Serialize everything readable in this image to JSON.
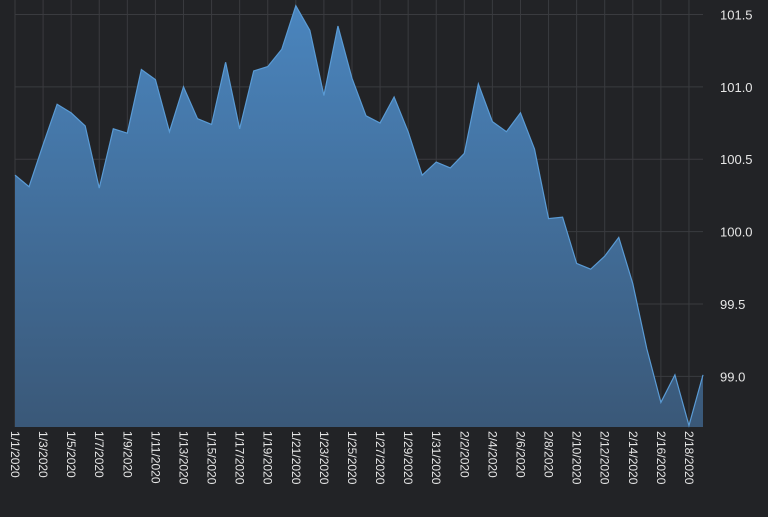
{
  "chart_data": {
    "type": "area",
    "title": "",
    "xlabel": "",
    "ylabel": "",
    "ylim": [
      98.65,
      101.6
    ],
    "yticks": [
      99.0,
      99.5,
      100.0,
      100.5,
      101.0,
      101.5
    ],
    "ytick_labels": [
      "99.0",
      "99.5",
      "100.0",
      "100.5",
      "101.0",
      "101.5"
    ],
    "y_axis_side": "right",
    "grid": true,
    "x": [
      "1/1/2020",
      "1/2/2020",
      "1/3/2020",
      "1/4/2020",
      "1/5/2020",
      "1/6/2020",
      "1/7/2020",
      "1/8/2020",
      "1/9/2020",
      "1/10/2020",
      "1/11/2020",
      "1/12/2020",
      "1/13/2020",
      "1/14/2020",
      "1/15/2020",
      "1/16/2020",
      "1/17/2020",
      "1/18/2020",
      "1/19/2020",
      "1/20/2020",
      "1/21/2020",
      "1/22/2020",
      "1/23/2020",
      "1/24/2020",
      "1/25/2020",
      "1/26/2020",
      "1/27/2020",
      "1/28/2020",
      "1/29/2020",
      "1/30/2020",
      "1/31/2020",
      "2/1/2020",
      "2/2/2020",
      "2/3/2020",
      "2/4/2020",
      "2/5/2020",
      "2/6/2020",
      "2/7/2020",
      "2/8/2020",
      "2/9/2020",
      "2/10/2020",
      "2/11/2020",
      "2/12/2020",
      "2/13/2020",
      "2/14/2020",
      "2/15/2020",
      "2/16/2020",
      "2/17/2020",
      "2/18/2020",
      "2/19/2020"
    ],
    "xtick_labels": [
      "1/1/2020",
      "1/3/2020",
      "1/5/2020",
      "1/7/2020",
      "1/9/2020",
      "1/11/2020",
      "1/13/2020",
      "1/15/2020",
      "1/17/2020",
      "1/19/2020",
      "1/21/2020",
      "1/23/2020",
      "1/25/2020",
      "1/27/2020",
      "1/29/2020",
      "1/31/2020",
      "2/2/2020",
      "2/4/2020",
      "2/6/2020",
      "2/8/2020",
      "2/10/2020",
      "2/12/2020",
      "2/14/2020",
      "2/16/2020",
      "2/18/2020"
    ],
    "series": [
      {
        "values": [
          100.39,
          100.31,
          100.6,
          100.88,
          100.82,
          100.73,
          100.3,
          100.71,
          100.68,
          101.12,
          101.05,
          100.69,
          101.0,
          100.78,
          100.74,
          101.17,
          100.71,
          101.11,
          101.14,
          101.26,
          101.56,
          101.39,
          100.94,
          101.42,
          101.06,
          100.8,
          100.75,
          100.93,
          100.69,
          100.39,
          100.48,
          100.44,
          100.54,
          101.02,
          100.76,
          100.69,
          100.82,
          100.57,
          100.09,
          100.1,
          99.78,
          99.74,
          99.83,
          99.96,
          99.64,
          99.19,
          98.82,
          99.01,
          98.66,
          99.01
        ]
      }
    ],
    "colors": {
      "background": "#222326",
      "grid": "#3a3b3f",
      "line": "#5a9bd5",
      "fill_top": "#4a85be",
      "fill_bottom": "#3a5878",
      "tick_text": "#e6e6e6"
    }
  }
}
